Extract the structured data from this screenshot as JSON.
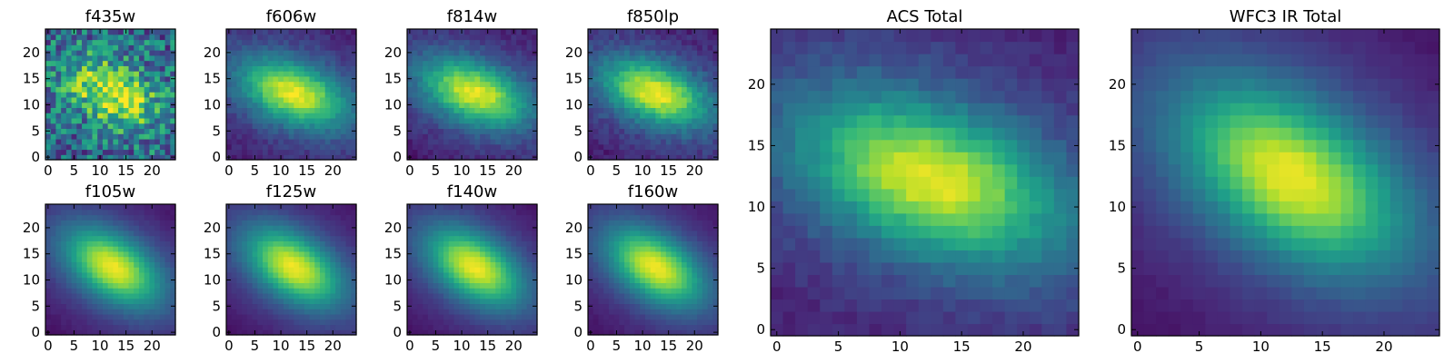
{
  "figure": {
    "colormap": "viridis",
    "colormap_stops": [
      "#440154",
      "#482878",
      "#3e4989",
      "#31688e",
      "#26828e",
      "#1f9e89",
      "#35b779",
      "#6ece58",
      "#b5de2b",
      "#fde725"
    ]
  },
  "chart_data": [
    {
      "type": "heatmap",
      "title": "f435w",
      "xlim": [
        -0.5,
        24.5
      ],
      "ylim": [
        -0.5,
        24.5
      ],
      "x_ticks": [
        0,
        5,
        10,
        15,
        20
      ],
      "y_ticks": [
        0,
        5,
        10,
        15,
        20
      ],
      "grid_size": [
        25,
        25
      ],
      "source": {
        "center": [
          12.5,
          12.2
        ],
        "semi_axes": [
          6.2,
          3.7
        ],
        "angle_deg": -25,
        "peak": 0.95,
        "background": 0.33,
        "halo": 0.1,
        "noise": 0.28
      }
    },
    {
      "type": "heatmap",
      "title": "f606w",
      "xlim": [
        -0.5,
        24.5
      ],
      "ylim": [
        -0.5,
        24.5
      ],
      "x_ticks": [
        0,
        5,
        10,
        15,
        20
      ],
      "y_ticks": [
        0,
        5,
        10,
        15,
        20
      ],
      "grid_size": [
        25,
        25
      ],
      "source": {
        "center": [
          12.5,
          12.3
        ],
        "semi_axes": [
          6.8,
          3.6
        ],
        "angle_deg": -20,
        "peak": 0.97,
        "background": 0.06,
        "halo": 0.3,
        "noise": 0.05
      }
    },
    {
      "type": "heatmap",
      "title": "f814w",
      "xlim": [
        -0.5,
        24.5
      ],
      "ylim": [
        -0.5,
        24.5
      ],
      "x_ticks": [
        0,
        5,
        10,
        15,
        20
      ],
      "y_ticks": [
        0,
        5,
        10,
        15,
        20
      ],
      "grid_size": [
        25,
        25
      ],
      "source": {
        "center": [
          12.5,
          12.3
        ],
        "semi_axes": [
          6.8,
          3.6
        ],
        "angle_deg": -20,
        "peak": 0.97,
        "background": 0.05,
        "halo": 0.3,
        "noise": 0.05
      }
    },
    {
      "type": "heatmap",
      "title": "f850lp",
      "xlim": [
        -0.5,
        24.5
      ],
      "ylim": [
        -0.5,
        24.5
      ],
      "x_ticks": [
        0,
        5,
        10,
        15,
        20
      ],
      "y_ticks": [
        0,
        5,
        10,
        15,
        20
      ],
      "grid_size": [
        25,
        25
      ],
      "source": {
        "center": [
          12.5,
          12.3
        ],
        "semi_axes": [
          6.8,
          3.6
        ],
        "angle_deg": -20,
        "peak": 0.97,
        "background": 0.05,
        "halo": 0.3,
        "noise": 0.06
      }
    },
    {
      "type": "heatmap",
      "title": "f105w",
      "xlim": [
        -0.5,
        24.5
      ],
      "ylim": [
        -0.5,
        24.5
      ],
      "x_ticks": [
        0,
        5,
        10,
        15,
        20
      ],
      "y_ticks": [
        0,
        5,
        10,
        15,
        20
      ],
      "grid_size": [
        25,
        25
      ],
      "source": {
        "center": [
          12.5,
          12.5
        ],
        "semi_axes": [
          6.3,
          3.6
        ],
        "angle_deg": -33,
        "peak": 0.98,
        "background": 0.03,
        "halo": 0.35,
        "noise": 0.015
      }
    },
    {
      "type": "heatmap",
      "title": "f125w",
      "xlim": [
        -0.5,
        24.5
      ],
      "ylim": [
        -0.5,
        24.5
      ],
      "x_ticks": [
        0,
        5,
        10,
        15,
        20
      ],
      "y_ticks": [
        0,
        5,
        10,
        15,
        20
      ],
      "grid_size": [
        25,
        25
      ],
      "source": {
        "center": [
          12.5,
          12.5
        ],
        "semi_axes": [
          6.3,
          3.6
        ],
        "angle_deg": -33,
        "peak": 0.98,
        "background": 0.03,
        "halo": 0.35,
        "noise": 0.015
      }
    },
    {
      "type": "heatmap",
      "title": "f140w",
      "xlim": [
        -0.5,
        24.5
      ],
      "ylim": [
        -0.5,
        24.5
      ],
      "x_ticks": [
        0,
        5,
        10,
        15,
        20
      ],
      "y_ticks": [
        0,
        5,
        10,
        15,
        20
      ],
      "grid_size": [
        25,
        25
      ],
      "source": {
        "center": [
          12.5,
          12.5
        ],
        "semi_axes": [
          6.3,
          3.6
        ],
        "angle_deg": -33,
        "peak": 0.98,
        "background": 0.03,
        "halo": 0.35,
        "noise": 0.015
      }
    },
    {
      "type": "heatmap",
      "title": "f160w",
      "xlim": [
        -0.5,
        24.5
      ],
      "ylim": [
        -0.5,
        24.5
      ],
      "x_ticks": [
        0,
        5,
        10,
        15,
        20
      ],
      "y_ticks": [
        0,
        5,
        10,
        15,
        20
      ],
      "grid_size": [
        25,
        25
      ],
      "source": {
        "center": [
          12.5,
          12.5
        ],
        "semi_axes": [
          6.3,
          3.6
        ],
        "angle_deg": -33,
        "peak": 0.98,
        "background": 0.03,
        "halo": 0.35,
        "noise": 0.015
      }
    },
    {
      "type": "heatmap",
      "title": "ACS Total",
      "xlim": [
        -0.5,
        24.5
      ],
      "ylim": [
        -0.5,
        24.5
      ],
      "x_ticks": [
        0,
        5,
        10,
        15,
        20
      ],
      "y_ticks": [
        0,
        5,
        10,
        15,
        20
      ],
      "grid_size": [
        25,
        25
      ],
      "source": {
        "center": [
          12.5,
          12.3
        ],
        "semi_axes": [
          6.8,
          3.6
        ],
        "angle_deg": -20,
        "peak": 0.97,
        "background": 0.06,
        "halo": 0.32,
        "noise": 0.04
      }
    },
    {
      "type": "heatmap",
      "title": "WFC3 IR Total",
      "xlim": [
        -0.5,
        24.5
      ],
      "ylim": [
        -0.5,
        24.5
      ],
      "x_ticks": [
        0,
        5,
        10,
        15,
        20
      ],
      "y_ticks": [
        0,
        5,
        10,
        15,
        20
      ],
      "grid_size": [
        25,
        25
      ],
      "source": {
        "center": [
          12.5,
          12.5
        ],
        "semi_axes": [
          6.3,
          3.6
        ],
        "angle_deg": -33,
        "peak": 0.98,
        "background": 0.03,
        "halo": 0.35,
        "noise": 0.015
      }
    }
  ]
}
